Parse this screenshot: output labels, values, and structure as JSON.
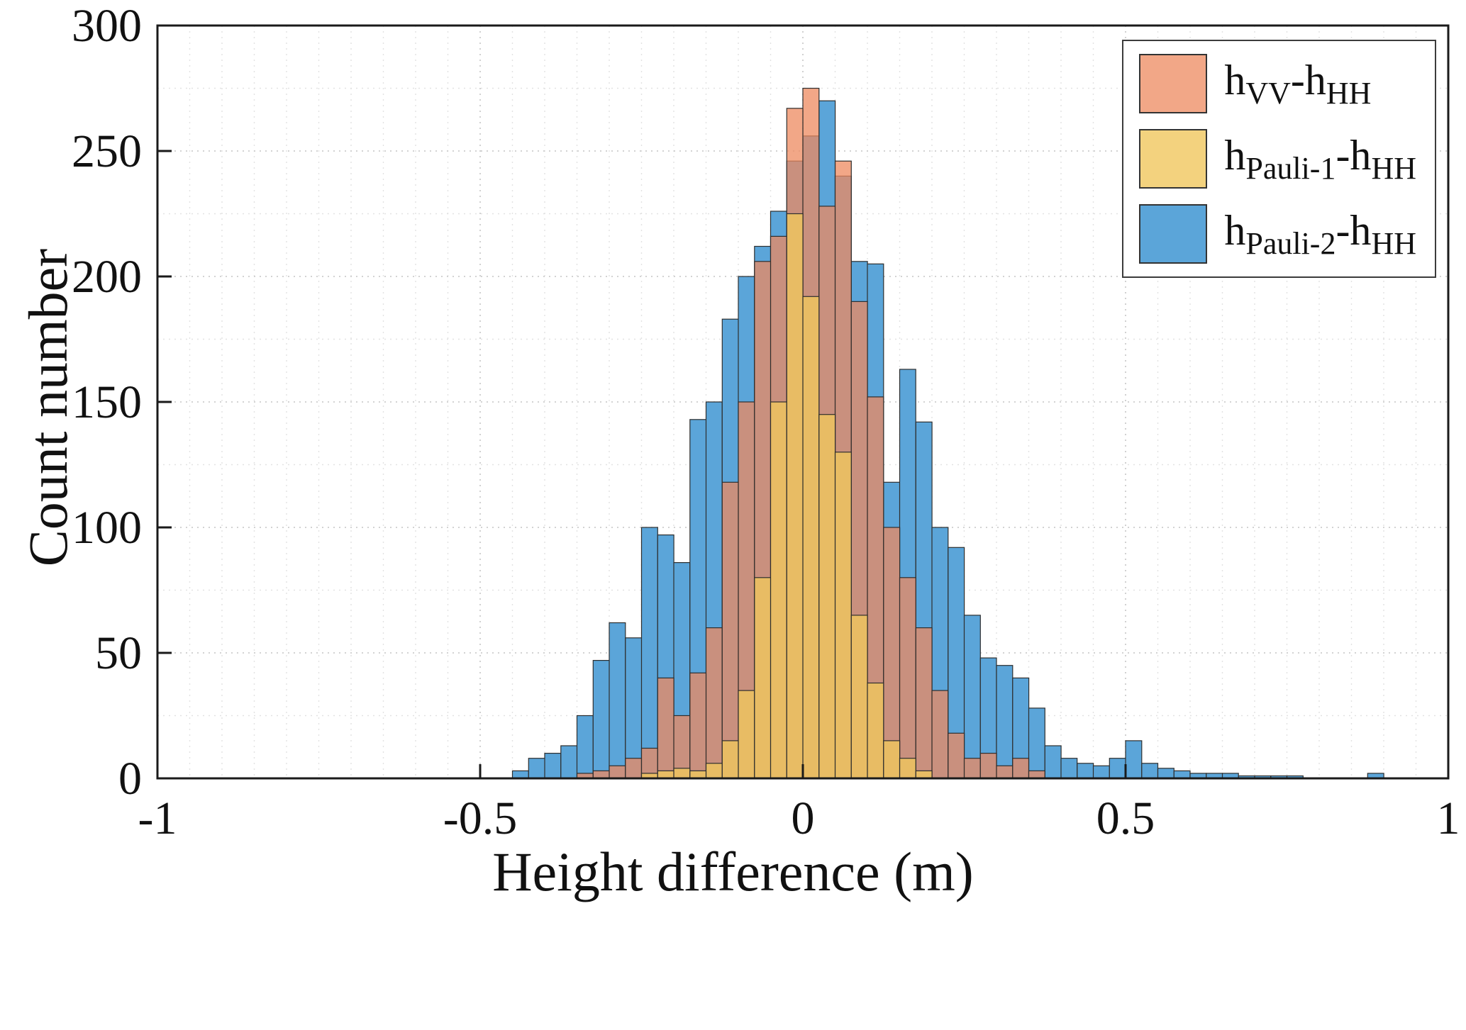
{
  "figure": {
    "background": "#ffffff"
  },
  "chart_data": {
    "type": "bar",
    "subtype": "histogram",
    "title": "",
    "xlabel": "Height difference (m)",
    "ylabel": "Count number",
    "xlim": [
      -1,
      1
    ],
    "ylim": [
      0,
      300
    ],
    "xticks": [
      -1,
      -0.5,
      0,
      0.5,
      1
    ],
    "xtick_labels": [
      "-1",
      "-0.5",
      "0",
      "0.5",
      "1"
    ],
    "yticks": [
      0,
      50,
      100,
      150,
      200,
      250,
      300
    ],
    "ytick_labels": [
      "0",
      "50",
      "100",
      "150",
      "200",
      "250",
      "300"
    ],
    "grid": {
      "on": true,
      "x_minor_step": 0.05,
      "y_minor_step": 25
    },
    "legend_position": "top-right",
    "bin_width": 0.025,
    "series": [
      {
        "name": "h[VV]-h[HH]",
        "color": "#ED8A5F",
        "bin_start": -0.35,
        "counts": [
          2,
          3,
          5,
          8,
          12,
          40,
          25,
          42,
          60,
          118,
          150,
          206,
          216,
          267,
          275,
          228,
          246,
          190,
          152,
          100,
          80,
          60,
          35,
          18,
          8,
          10,
          5,
          8,
          3
        ]
      },
      {
        "name": "h[Pauli-1]-h[HH]",
        "color": "#F0C75E",
        "bin_start": -0.25,
        "counts": [
          2,
          3,
          4,
          3,
          6,
          15,
          35,
          80,
          150,
          225,
          192,
          145,
          130,
          65,
          38,
          15,
          8,
          3
        ]
      },
      {
        "name": "h[Pauli-2]-h[HH]",
        "color": "#5BA5D9",
        "bin_start": -0.45,
        "counts": [
          3,
          8,
          10,
          13,
          25,
          47,
          62,
          56,
          100,
          97,
          86,
          143,
          150,
          183,
          200,
          212,
          226,
          246,
          256,
          270,
          240,
          206,
          205,
          118,
          163,
          142,
          100,
          92,
          65,
          48,
          45,
          40,
          28,
          13,
          8,
          6,
          5,
          8,
          15,
          6,
          4,
          3,
          2,
          2,
          2,
          1,
          1,
          1,
          1,
          0,
          0,
          0,
          0,
          2
        ]
      }
    ],
    "draw_order": [
      2,
      0,
      1
    ],
    "draw_opacity": [
      1.0,
      0.75,
      0.8
    ],
    "colors": {
      "bar_edge": "#2e2e2e",
      "axis": "#1a1a1a",
      "grid_major": "#c9c9c9",
      "grid_minor": "#e2e2e2",
      "text": "#111111"
    }
  }
}
